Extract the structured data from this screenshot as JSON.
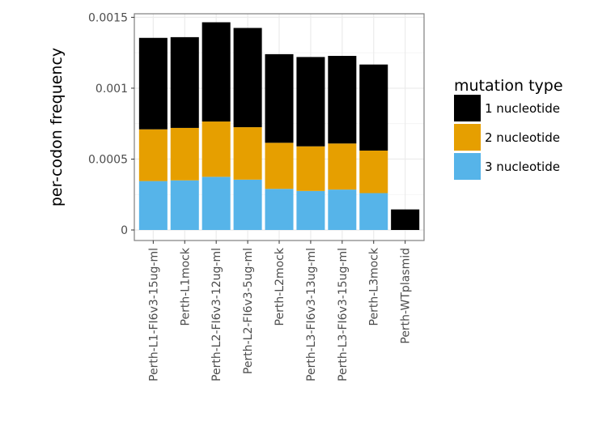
{
  "chart_data": {
    "type": "bar",
    "stacked": true,
    "categories": [
      "Perth-L1-FI6v3-15ug-ml",
      "Perth-L1mock",
      "Perth-L2-FI6v3-12ug-ml",
      "Perth-L2-FI6v3-5ug-ml",
      "Perth-L2mock",
      "Perth-L3-FI6v3-13ug-ml",
      "Perth-L3-FI6v3-15ug-ml",
      "Perth-L3mock",
      "Perth-WTplasmid"
    ],
    "series": [
      {
        "name": "3 nucleotide",
        "color": "#56b4e9",
        "values": [
          0.000345,
          0.00035,
          0.000375,
          0.000355,
          0.00029,
          0.000275,
          0.000285,
          0.00026,
          0
        ]
      },
      {
        "name": "2 nucleotide",
        "color": "#e69f00",
        "values": [
          0.000365,
          0.00037,
          0.00039,
          0.00037,
          0.000325,
          0.000315,
          0.000325,
          0.0003,
          0
        ]
      },
      {
        "name": "1 nucleotide",
        "color": "#000000",
        "values": [
          0.000645,
          0.00064,
          0.0007,
          0.0007,
          0.000625,
          0.00063,
          0.000618,
          0.000607,
          0.000145
        ]
      }
    ],
    "yticks": [
      0,
      0.0005,
      0.001,
      0.0015
    ],
    "ytick_labels": [
      "0",
      "0.0005",
      "0.001",
      "0.0015"
    ],
    "ylim": [
      0,
      0.001525
    ],
    "ylabel": "per-codon frequency",
    "xlabel": "",
    "legend_title": "mutation type",
    "legend_items": [
      "1 nucleotide",
      "2 nucleotide",
      "3 nucleotide"
    ],
    "legend_colors": [
      "#000000",
      "#e69f00",
      "#56b4e9"
    ],
    "legend_position": "right",
    "grid": true
  }
}
